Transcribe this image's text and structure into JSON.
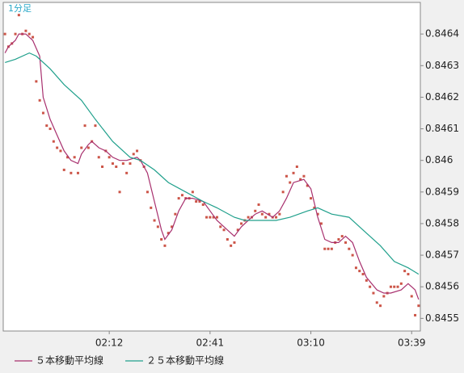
{
  "chart_data": {
    "type": "line",
    "title": "1分足",
    "categories": [
      null,
      null,
      null,
      null,
      null,
      null,
      null,
      null,
      null,
      null,
      null,
      null,
      null,
      null,
      null,
      null,
      null,
      null,
      null,
      null,
      null,
      null,
      null,
      null,
      null,
      null,
      null,
      null,
      null,
      null,
      "02:12",
      null,
      null,
      null,
      null,
      null,
      null,
      null,
      null,
      null,
      null,
      null,
      null,
      null,
      null,
      null,
      null,
      null,
      null,
      null,
      null,
      null,
      null,
      null,
      null,
      null,
      null,
      null,
      null,
      "02:41",
      null,
      null,
      null,
      null,
      null,
      null,
      null,
      null,
      null,
      null,
      null,
      null,
      null,
      null,
      null,
      null,
      null,
      null,
      null,
      null,
      null,
      null,
      null,
      null,
      null,
      null,
      null,
      null,
      "03:10",
      null,
      null,
      null,
      null,
      null,
      null,
      null,
      null,
      null,
      null,
      null,
      null,
      null,
      null,
      null,
      null,
      null,
      null,
      null,
      null,
      null,
      null,
      null,
      null,
      null,
      null,
      null,
      null,
      "03:39",
      null,
      null
    ],
    "ylim": [
      0.84546,
      0.8465
    ],
    "yticks": [
      0.8455,
      0.8456,
      0.8457,
      0.8458,
      0.8459,
      0.846,
      0.8461,
      0.8462,
      0.8463,
      0.8464
    ],
    "series": [
      {
        "color": "#cc5548",
        "marker": "square",
        "values": [
          0.8464,
          0.84636,
          0.84637,
          0.8464,
          0.84646,
          0.8464,
          0.84641,
          0.8464,
          0.84639,
          0.84625,
          0.84619,
          0.84615,
          0.84611,
          0.8461,
          0.84606,
          0.84604,
          0.84603,
          0.84597,
          0.84601,
          0.84596,
          0.84601,
          0.84596,
          0.84604,
          0.84611,
          0.84604,
          0.84606,
          0.84611,
          0.84601,
          0.84598,
          0.84603,
          0.84601,
          0.84599,
          0.84598,
          0.8459,
          0.84599,
          0.84596,
          0.84599,
          0.84602,
          0.84603,
          0.846,
          0.84598,
          0.8459,
          0.84585,
          0.84581,
          0.84579,
          0.84575,
          0.84573,
          0.84577,
          0.84579,
          0.84583,
          0.84588,
          0.84589,
          0.84588,
          0.84588,
          0.8459,
          0.84587,
          0.84587,
          0.84586,
          0.84582,
          0.84582,
          0.84582,
          0.84582,
          0.84579,
          0.84578,
          0.84575,
          0.84573,
          0.84574,
          0.84578,
          0.8458,
          0.84581,
          0.84582,
          0.84582,
          0.84584,
          0.84586,
          0.84583,
          0.84582,
          0.84583,
          0.84582,
          0.84582,
          0.84583,
          0.8459,
          0.84595,
          0.84593,
          0.84596,
          0.84598,
          0.84594,
          0.84595,
          0.84592,
          0.84588,
          0.84585,
          0.84583,
          0.8458,
          0.84572,
          0.84572,
          0.84572,
          0.84574,
          0.84575,
          0.84576,
          0.84574,
          0.84572,
          0.8457,
          0.84566,
          0.84565,
          0.84564,
          0.84562,
          0.8456,
          0.84558,
          0.84555,
          0.84554,
          0.84557,
          0.84558,
          0.8456,
          0.8456,
          0.8456,
          0.84561,
          0.84565,
          0.84564,
          0.84557,
          0.84551,
          0.84554
        ]
      },
      {
        "name": "５本移動平均線",
        "color": "#a8306e",
        "x": [
          0,
          1,
          3,
          4,
          6,
          8,
          10,
          11,
          13,
          15,
          17,
          19,
          21,
          22,
          24,
          25,
          27,
          29,
          31,
          33,
          35,
          38,
          39,
          41,
          43,
          45,
          46,
          48,
          50,
          52,
          54,
          57,
          59,
          61,
          64,
          66,
          68,
          70,
          72,
          74,
          77,
          79,
          81,
          83,
          86,
          88,
          90,
          92,
          94,
          96,
          98,
          100,
          102,
          104,
          107,
          109,
          111,
          114,
          116,
          118,
          119
        ],
        "values": [
          0.84634,
          0.84636,
          0.84638,
          0.8464,
          0.8464,
          0.84638,
          0.84633,
          0.8462,
          0.84613,
          0.84608,
          0.84603,
          0.846,
          0.84599,
          0.84602,
          0.84605,
          0.84606,
          0.84604,
          0.84603,
          0.84601,
          0.846,
          0.846,
          0.84601,
          0.846,
          0.84596,
          0.84587,
          0.84578,
          0.84575,
          0.84578,
          0.84584,
          0.84588,
          0.84588,
          0.84587,
          0.84584,
          0.84581,
          0.84578,
          0.84576,
          0.84579,
          0.84581,
          0.84583,
          0.84584,
          0.84582,
          0.84584,
          0.84588,
          0.84593,
          0.84594,
          0.84591,
          0.84582,
          0.84575,
          0.84574,
          0.84574,
          0.84576,
          0.84574,
          0.84568,
          0.84563,
          0.84559,
          0.84558,
          0.84558,
          0.84559,
          0.84561,
          0.84559,
          0.84556
        ]
      },
      {
        "name": "２５本移動平均線",
        "color": "#20a08c",
        "x": [
          0,
          3,
          7,
          9,
          13,
          17,
          22,
          26,
          31,
          36,
          39,
          43,
          47,
          52,
          57,
          61,
          66,
          69,
          73,
          78,
          82,
          87,
          90,
          94,
          99,
          103,
          108,
          112,
          116,
          119
        ],
        "values": [
          0.84631,
          0.84632,
          0.84634,
          0.84633,
          0.84629,
          0.84624,
          0.84619,
          0.84613,
          0.84606,
          0.84601,
          0.846,
          0.84597,
          0.84593,
          0.8459,
          0.84587,
          0.84585,
          0.84582,
          0.84581,
          0.84581,
          0.84581,
          0.84582,
          0.84584,
          0.84585,
          0.84583,
          0.84582,
          0.84578,
          0.84573,
          0.84568,
          0.84566,
          0.84564
        ]
      }
    ]
  }
}
